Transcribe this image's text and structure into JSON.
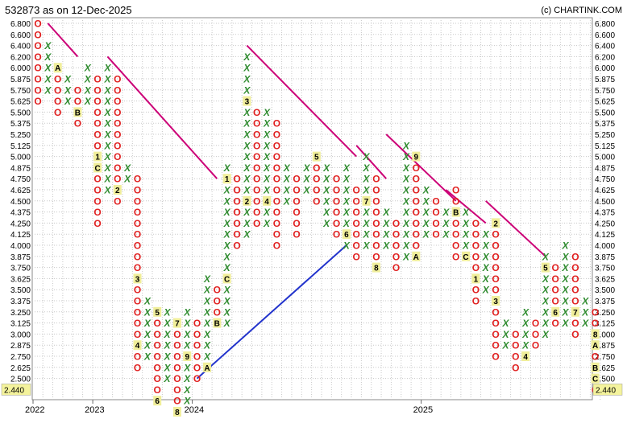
{
  "title": "532873 as on 12-Dec-2025",
  "credit": "(c) CHARTINK.COM",
  "last_price": "2.440",
  "colors": {
    "x": "#2e8b2e",
    "o": "#e02020",
    "resistance": "#cc0077",
    "support": "#2233cc",
    "marker_bg": "#f0ee9a",
    "price_bg": "#f4f39c"
  },
  "chart_data": {
    "type": "point-and-figure",
    "title": "532873 as on 12-Dec-2025",
    "price_levels": [
      "6.800",
      "6.600",
      "6.400",
      "6.200",
      "6.000",
      "5.875",
      "5.750",
      "5.625",
      "5.500",
      "5.375",
      "5.250",
      "5.125",
      "5.000",
      "4.875",
      "4.750",
      "4.625",
      "4.500",
      "4.375",
      "4.250",
      "4.125",
      "4.000",
      "3.875",
      "3.750",
      "3.625",
      "3.500",
      "3.375",
      "3.250",
      "3.125",
      "3.000",
      "2.875",
      "2.750",
      "2.625",
      "2.500"
    ],
    "year_labels": [
      {
        "label": "2022",
        "col": 0
      },
      {
        "label": "2023",
        "col": 6
      },
      {
        "label": "2024",
        "col": 16
      },
      {
        "label": "2025",
        "col": 39
      }
    ],
    "columns": [
      {
        "t": "O",
        "hi": "6.800",
        "lo": "5.625"
      },
      {
        "t": "X",
        "hi": "6.400",
        "lo": "5.750"
      },
      {
        "t": "O",
        "hi": "6.000",
        "lo": "5.500",
        "m": {
          "6.000": "A"
        }
      },
      {
        "t": "X",
        "hi": "5.875",
        "lo": "5.625"
      },
      {
        "t": "O",
        "hi": "5.750",
        "lo": "5.375",
        "m": {
          "5.500": "B"
        }
      },
      {
        "t": "X",
        "hi": "6.000",
        "lo": "5.625"
      },
      {
        "t": "O",
        "hi": "5.875",
        "lo": "4.250",
        "m": {
          "4.875": "C",
          "5.000": "1"
        }
      },
      {
        "t": "X",
        "hi": "6.000",
        "lo": "4.625"
      },
      {
        "t": "O",
        "hi": "5.875",
        "lo": "4.500",
        "m": {
          "4.625": "2"
        }
      },
      {
        "t": "X",
        "hi": "4.875",
        "lo": "4.750"
      },
      {
        "t": "O",
        "hi": "4.750",
        "lo": "2.625",
        "m": {
          "3.625": "3",
          "2.875": "4"
        }
      },
      {
        "t": "X",
        "hi": "3.375",
        "lo": "2.750"
      },
      {
        "t": "O",
        "hi": "3.250",
        "lo": "2.375",
        "m": {
          "3.250": "5",
          "2.375": "6"
        }
      },
      {
        "t": "X",
        "hi": "3.250",
        "lo": "2.500"
      },
      {
        "t": "O",
        "hi": "3.125",
        "lo": "2.250",
        "m": {
          "3.125": "7",
          "2.250": "8"
        }
      },
      {
        "t": "X",
        "hi": "3.250",
        "lo": "2.375",
        "m": {
          "2.750": "9"
        }
      },
      {
        "t": "O",
        "hi": "3.125",
        "lo": "2.500"
      },
      {
        "t": "X",
        "hi": "3.625",
        "lo": "2.625",
        "m": {
          "2.625": "A"
        }
      },
      {
        "t": "O",
        "hi": "3.500",
        "lo": "3.125",
        "m": {
          "3.125": "B"
        }
      },
      {
        "t": "X",
        "hi": "4.875",
        "lo": "3.125",
        "m": {
          "3.625": "C",
          "4.750": "1"
        }
      },
      {
        "t": "O",
        "hi": "4.750",
        "lo": "4.000"
      },
      {
        "t": "X",
        "hi": "6.200",
        "lo": "4.125",
        "m": {
          "4.500": "2",
          "5.625": "3"
        }
      },
      {
        "t": "O",
        "hi": "5.500",
        "lo": "4.250"
      },
      {
        "t": "X",
        "hi": "5.500",
        "lo": "4.250",
        "m": {
          "4.500": "4"
        }
      },
      {
        "t": "O",
        "hi": "5.375",
        "lo": "4.000"
      },
      {
        "t": "X",
        "hi": "4.875",
        "lo": "4.500"
      },
      {
        "t": "O",
        "hi": "4.750",
        "lo": "4.125"
      },
      {
        "t": "X",
        "hi": "4.875",
        "lo": "4.625"
      },
      {
        "t": "O",
        "hi": "5.000",
        "lo": "4.500",
        "m": {
          "5.000": "5"
        }
      },
      {
        "t": "X",
        "hi": "4.875",
        "lo": "4.250"
      },
      {
        "t": "O",
        "hi": "4.750",
        "lo": "4.125"
      },
      {
        "t": "X",
        "hi": "4.875",
        "lo": "4.000",
        "m": {
          "4.125": "6"
        }
      },
      {
        "t": "O",
        "hi": "4.625",
        "lo": "3.875"
      },
      {
        "t": "X",
        "hi": "5.000",
        "lo": "4.000",
        "m": {
          "4.500": "7"
        }
      },
      {
        "t": "O",
        "hi": "4.750",
        "lo": "3.750",
        "m": {
          "3.750": "8"
        }
      },
      {
        "t": "X",
        "hi": "4.375",
        "lo": "4.000"
      },
      {
        "t": "O",
        "hi": "4.250",
        "lo": "3.750"
      },
      {
        "t": "X",
        "hi": "5.125",
        "lo": "3.875"
      },
      {
        "t": "O",
        "hi": "5.000",
        "lo": "3.875",
        "m": {
          "5.000": "9",
          "3.875": "A"
        }
      },
      {
        "t": "X",
        "hi": "4.625",
        "lo": "4.125"
      },
      {
        "t": "O",
        "hi": "4.500",
        "lo": "4.125"
      },
      {
        "t": "X",
        "hi": "4.375",
        "lo": "4.125"
      },
      {
        "t": "O",
        "hi": "4.625",
        "lo": "3.875",
        "m": {
          "4.375": "B"
        }
      },
      {
        "t": "X",
        "hi": "4.375",
        "lo": "3.875",
        "m": {
          "3.875": "C"
        }
      },
      {
        "t": "O",
        "hi": "4.250",
        "lo": "3.375",
        "m": {
          "3.625": "1"
        }
      },
      {
        "t": "X",
        "hi": "4.125",
        "lo": "3.500"
      },
      {
        "t": "O",
        "hi": "4.250",
        "lo": "2.750",
        "m": {
          "4.250": "2",
          "3.375": "3"
        }
      },
      {
        "t": "X",
        "hi": "3.125",
        "lo": "2.875"
      },
      {
        "t": "O",
        "hi": "3.000",
        "lo": "2.625"
      },
      {
        "t": "X",
        "hi": "3.250",
        "lo": "2.750",
        "m": {
          "2.750": "4"
        }
      },
      {
        "t": "O",
        "hi": "3.125",
        "lo": "2.875"
      },
      {
        "t": "X",
        "hi": "3.875",
        "lo": "3.000",
        "m": {
          "3.750": "5"
        }
      },
      {
        "t": "O",
        "hi": "3.750",
        "lo": "3.125",
        "m": {
          "3.250": "6"
        }
      },
      {
        "t": "X",
        "hi": "4.000",
        "lo": "3.125"
      },
      {
        "t": "O",
        "hi": "3.875",
        "lo": "3.000",
        "m": {
          "3.250": "7"
        }
      },
      {
        "t": "X",
        "hi": "3.375",
        "lo": "3.125"
      },
      {
        "t": "O",
        "hi": "3.250",
        "lo": "2.440",
        "m": {
          "3.000": "8",
          "2.875": "A",
          "2.625": "B",
          "2.500": "C"
        }
      }
    ],
    "trend_lines": [
      {
        "name": "resistance",
        "from": {
          "col": 1,
          "price": "6.800"
        },
        "to": {
          "col": 4,
          "price": "6.200"
        }
      },
      {
        "name": "resistance",
        "from": {
          "col": 7,
          "price": "6.200"
        },
        "to": {
          "col": 18,
          "price": "4.750"
        }
      },
      {
        "name": "resistance",
        "from": {
          "col": 21,
          "price": "6.400"
        },
        "to": {
          "col": 32,
          "price": "5.000"
        }
      },
      {
        "name": "resistance",
        "from": {
          "col": 32,
          "price": "5.125"
        },
        "to": {
          "col": 35,
          "price": "4.750"
        }
      },
      {
        "name": "resistance",
        "from": {
          "col": 35,
          "price": "5.250"
        },
        "to": {
          "col": 42,
          "price": "4.500"
        }
      },
      {
        "name": "resistance",
        "from": {
          "col": 41,
          "price": "4.625"
        },
        "to": {
          "col": 45,
          "price": "4.250"
        }
      },
      {
        "name": "resistance",
        "from": {
          "col": 45,
          "price": "4.500"
        },
        "to": {
          "col": 51,
          "price": "3.875"
        }
      },
      {
        "name": "support",
        "from": {
          "col": 16,
          "price": "2.500"
        },
        "to": {
          "col": 31,
          "price": "4.000"
        }
      }
    ],
    "grid": true
  }
}
